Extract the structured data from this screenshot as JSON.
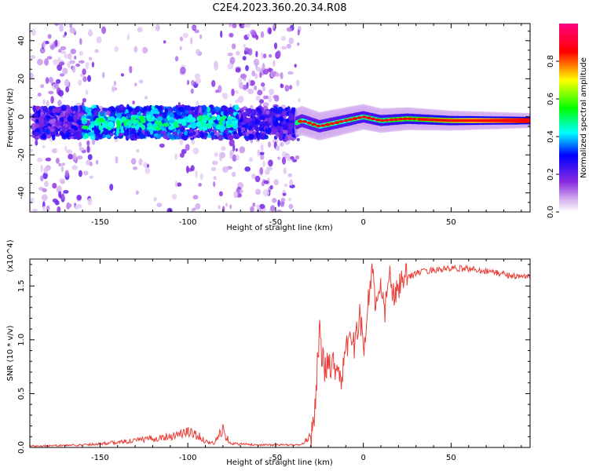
{
  "figure": {
    "title": "C2E4.2023.360.20.34.R08"
  },
  "chart_data": [
    {
      "type": "heatmap",
      "xlabel": "Height of straight line (km)",
      "ylabel": "Frequency (Hz)",
      "xlim": [
        -190,
        95
      ],
      "ylim": [
        -50,
        49
      ],
      "x_ticks": [
        -150,
        -100,
        -50,
        0,
        50
      ],
      "y_ticks": [
        -40,
        -20,
        0,
        20,
        40
      ],
      "grid": false,
      "colorbar": {
        "label": "Normalized spectral amplitude",
        "range": [
          0,
          1
        ],
        "ticks": [
          "0.0",
          "0.2",
          "0.4",
          "0.6",
          "0.8"
        ],
        "colors": [
          "#ffffff",
          "#d9b8f0",
          "#8a2be2",
          "#0000ff",
          "#00ffff",
          "#00ff00",
          "#ffff00",
          "#ff0000",
          "#ff0080"
        ]
      },
      "ridge": {
        "x": [
          -190,
          -150,
          -100,
          -75,
          -40,
          -35,
          -25,
          -10,
          0,
          10,
          25,
          50,
          95
        ],
        "y": [
          -3,
          -3,
          -3,
          -3,
          -4,
          -2,
          -5,
          -2,
          0,
          -2,
          -1,
          -2,
          -2
        ]
      }
    },
    {
      "type": "line",
      "xlabel": "Height of straight line (km)",
      "ylabel": "SNR (10 * v/v)",
      "y_multiplier": "(x10^4)",
      "xlim": [
        -190,
        95
      ],
      "ylim": [
        0,
        1.75
      ],
      "x_ticks": [
        -150,
        -100,
        -50,
        0,
        50
      ],
      "y_ticks": [
        "0.0",
        "0.5",
        "1.0",
        "1.5"
      ],
      "line_color": "#e8403a",
      "series": [
        {
          "x": [
            -190,
            -160,
            -140,
            -120,
            -110,
            -100,
            -95,
            -90,
            -85,
            -80,
            -78,
            -75,
            -60,
            -45,
            -35,
            -30,
            -28,
            -26,
            -25,
            -24,
            -22,
            -20,
            -15,
            -12,
            -10,
            -8,
            -5,
            -2,
            0,
            2,
            4,
            5,
            7,
            10,
            12,
            15,
            18,
            20,
            25,
            30,
            40,
            50,
            60,
            70,
            80,
            90,
            95
          ],
          "y": [
            0.01,
            0.02,
            0.04,
            0.07,
            0.09,
            0.12,
            0.1,
            0.05,
            0.03,
            0.15,
            0.08,
            0.03,
            0.02,
            0.02,
            0.02,
            0.1,
            0.3,
            0.8,
            1.15,
            0.9,
            0.7,
            0.8,
            0.75,
            0.65,
            0.85,
            1.1,
            0.9,
            1.3,
            0.85,
            1.25,
            1.5,
            1.75,
            1.3,
            1.45,
            1.25,
            1.6,
            1.35,
            1.5,
            1.58,
            1.62,
            1.65,
            1.66,
            1.66,
            1.64,
            1.61,
            1.58,
            1.6
          ]
        }
      ]
    }
  ]
}
